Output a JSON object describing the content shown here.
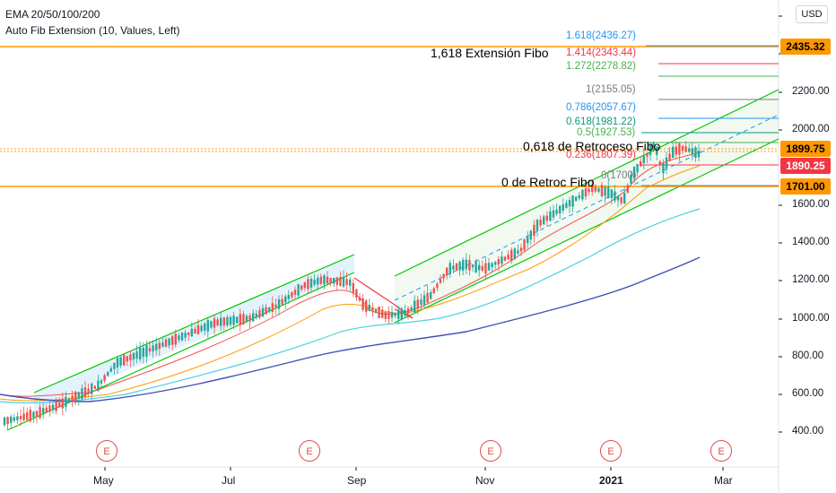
{
  "chart": {
    "legend": {
      "indicator_line1": "EMA 20/50/100/200",
      "indicator_line2": "Auto Fib Extension (10, Values, Left)"
    },
    "currency_button": "USD",
    "annotations": {
      "extension": "1,618 Extensión Fibo",
      "retracement": "0,618 de Retroceso Fibo",
      "zero_retracement": "0 de Retroc Fibo"
    },
    "fib_levels": [
      {
        "label": "1.618(2436.27)",
        "color": "#2196f3"
      },
      {
        "label": "1.414(2343.44)",
        "color": "#f23645"
      },
      {
        "label": "1.272(2278.82)",
        "color": "#4caf50"
      },
      {
        "label": "1(2155.05)",
        "color": "#787b86"
      },
      {
        "label": "0.786(2057.67)",
        "color": "#2196f3"
      },
      {
        "label": "0.618(1981.22)",
        "color": "#089981"
      },
      {
        "label": "0.5(1927.53)",
        "color": "#4caf50"
      },
      {
        "label": "0.236(1807.39)",
        "color": "#f23645"
      },
      {
        "label": "0(1700)",
        "color": "#787b86"
      }
    ],
    "price_labels": [
      {
        "label": "2435.32",
        "bg": "#ff9800",
        "fg": "#000000"
      },
      {
        "label": "1899.75",
        "bg": "#ff9800",
        "fg": "#000000"
      },
      {
        "label": "1890.25",
        "bg": "#f23645",
        "fg": "#ffffff"
      },
      {
        "label": "1701.00",
        "bg": "#ff9800",
        "fg": "#000000"
      }
    ],
    "y_ticks": [
      "2200.00",
      "2000.00",
      "1600.00",
      "1400.00",
      "1200.00",
      "1000.00",
      "800.00",
      "600.00",
      "400.00"
    ],
    "x_ticks": [
      "May",
      "Jul",
      "Sep",
      "Nov",
      "2021",
      "Mar"
    ],
    "earnings_marker": "E",
    "colors": {
      "up": "#26a69a",
      "down": "#ef5350",
      "ema20": "#ef5350",
      "ema50": "#ff9800",
      "ema100": "#4dd0e1",
      "ema200": "#3f51b5",
      "channel": "#00c800",
      "horizontal": "#ff9800"
    }
  }
}
